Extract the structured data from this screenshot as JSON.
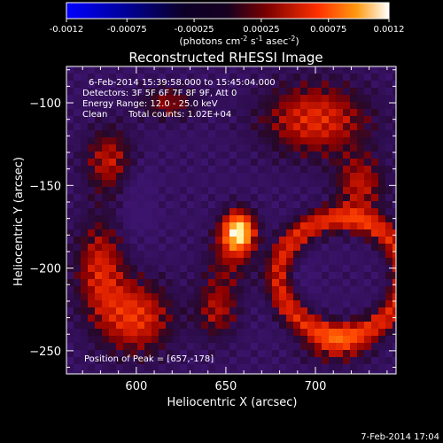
{
  "colorbar": {
    "ticks": [
      "-0.0012",
      "-0.00075",
      "-0.00025",
      "0.00025",
      "0.00075",
      "0.0012"
    ],
    "tick_values": [
      -0.0012,
      -0.00075,
      -0.00025,
      0.00025,
      0.00075,
      0.0012
    ],
    "range": [
      -0.0012,
      0.0012
    ],
    "unit_label": {
      "pre": "(photons cm",
      "exp1": "-2",
      "mid1": " s",
      "exp2": "-1",
      "mid2": " asec",
      "exp3": "-2",
      "post": ")"
    }
  },
  "chart_data": {
    "type": "heatmap",
    "title": "Reconstructed RHESSI Image",
    "xlabel": "Heliocentric X (arcsec)",
    "ylabel": "Heliocentric Y (arcsec)",
    "xlim": [
      561,
      745
    ],
    "ylim": [
      -264,
      -78
    ],
    "x_ticks": [
      600,
      650,
      700
    ],
    "y_ticks": [
      -100,
      -150,
      -200,
      -250
    ],
    "peak": {
      "x": 657,
      "y": -178
    },
    "colormap": [
      "#0000ff",
      "#000060",
      "#130018",
      "#3d1470",
      "#9e0000",
      "#ff2a00",
      "#ff9000",
      "#ffffff"
    ],
    "annotations": {
      "time_range": "6-Feb-2014 15:39:58.000 to 15:45:04.000",
      "detectors": "Detectors: 3F 5F 6F 7F 8F 9F, Att 0",
      "energy": "Energy Range: 12.0 - 25.0 keV",
      "method": "Clean",
      "counts": "Total counts: 1.02E+04",
      "peak_text": "Position of Peak = [657,-178]"
    }
  },
  "footer": {
    "timestamp": "7-Feb-2014 17:04"
  }
}
